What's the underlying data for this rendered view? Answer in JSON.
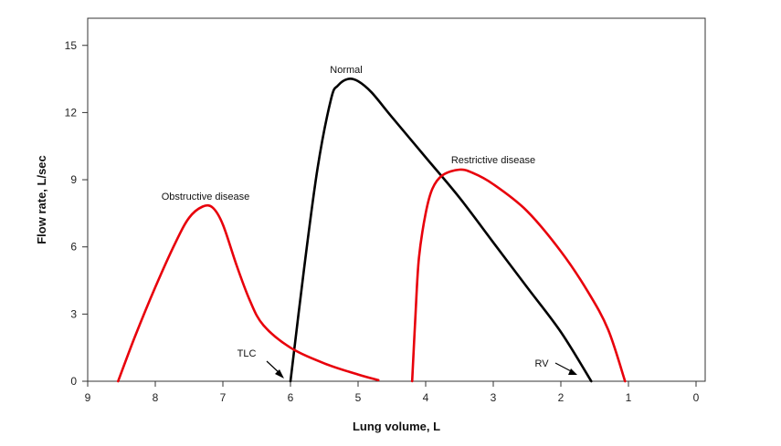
{
  "chart_data": {
    "type": "line",
    "title": "",
    "xlabel": "Lung volume, L",
    "ylabel": "Flow rate, L/sec",
    "xlim": [
      9,
      0
    ],
    "ylim": [
      0,
      15.5
    ],
    "x_ticks": [
      "9",
      "8",
      "7",
      "6",
      "5",
      "4",
      "3",
      "2",
      "1",
      "0"
    ],
    "y_ticks": [
      "0",
      "3",
      "6",
      "9",
      "12",
      "15"
    ],
    "grid": false,
    "series": [
      {
        "name": "Normal",
        "color": "#000000",
        "points": [
          [
            6.0,
            0
          ],
          [
            5.8,
            5.0
          ],
          [
            5.6,
            9.5
          ],
          [
            5.4,
            12.6
          ],
          [
            5.3,
            13.2
          ],
          [
            5.15,
            13.5
          ],
          [
            5.0,
            13.4
          ],
          [
            4.8,
            12.9
          ],
          [
            4.5,
            11.8
          ],
          [
            4.0,
            10.0
          ],
          [
            3.5,
            8.2
          ],
          [
            3.0,
            6.2
          ],
          [
            2.5,
            4.2
          ],
          [
            2.0,
            2.2
          ],
          [
            1.55,
            0
          ]
        ]
      },
      {
        "name": "Obstructive disease",
        "color": "#e8000b",
        "points": [
          [
            8.55,
            0
          ],
          [
            8.3,
            2.0
          ],
          [
            8.0,
            4.2
          ],
          [
            7.7,
            6.2
          ],
          [
            7.5,
            7.3
          ],
          [
            7.3,
            7.8
          ],
          [
            7.15,
            7.75
          ],
          [
            7.0,
            7.0
          ],
          [
            6.8,
            5.2
          ],
          [
            6.6,
            3.6
          ],
          [
            6.4,
            2.5
          ],
          [
            6.0,
            1.5
          ],
          [
            5.5,
            0.8
          ],
          [
            5.0,
            0.3
          ],
          [
            4.7,
            0.05
          ]
        ]
      },
      {
        "name": "Restrictive disease",
        "color": "#e8000b",
        "points": [
          [
            4.2,
            0
          ],
          [
            4.15,
            3.0
          ],
          [
            4.1,
            5.5
          ],
          [
            4.0,
            7.5
          ],
          [
            3.9,
            8.6
          ],
          [
            3.75,
            9.2
          ],
          [
            3.5,
            9.45
          ],
          [
            3.3,
            9.3
          ],
          [
            3.0,
            8.8
          ],
          [
            2.5,
            7.6
          ],
          [
            2.0,
            5.8
          ],
          [
            1.6,
            4.0
          ],
          [
            1.3,
            2.3
          ],
          [
            1.05,
            0
          ]
        ]
      }
    ],
    "annotations": {
      "normal": "Normal",
      "obstructive": "Obstructive disease",
      "restrictive": "Restrictive disease",
      "tlc": "TLC",
      "rv": "RV"
    }
  }
}
